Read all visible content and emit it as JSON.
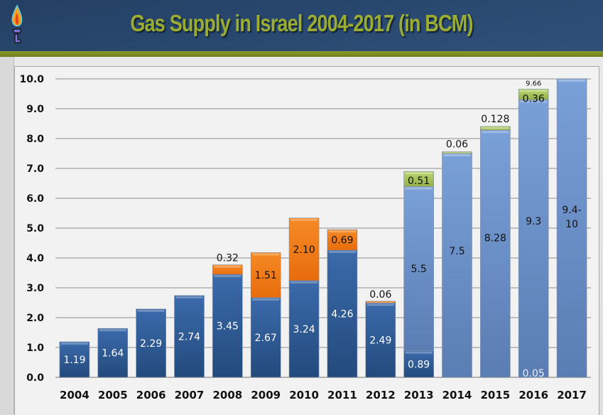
{
  "header": {
    "title": "Gas Supply in Israel 2004-2017 (in BCM)",
    "icon": "gas-flame-icon"
  },
  "chart_data": {
    "type": "bar",
    "stacked": true,
    "title": "Gas Supply in Israel 2004-2017 (in BCM)",
    "xlabel": "",
    "ylabel": "",
    "ylim": [
      0,
      10
    ],
    "yticks": [
      "0.0",
      "1.0",
      "2.0",
      "3.0",
      "4.0",
      "5.0",
      "6.0",
      "7.0",
      "8.0",
      "9.0",
      "10.0"
    ],
    "grid": true,
    "legend": "none",
    "categories": [
      "2004",
      "2005",
      "2006",
      "2007",
      "2008",
      "2009",
      "2010",
      "2011",
      "2012",
      "2013",
      "2014",
      "2015",
      "2016",
      "2017"
    ],
    "colors": {
      "dark_blue": "#2f5b95",
      "orange": "#f07a14",
      "light_blue": "#6f93cc",
      "green": "#a9c45a"
    },
    "series": [
      {
        "name": "dark_blue",
        "values": [
          1.19,
          1.64,
          2.29,
          2.74,
          3.45,
          2.67,
          3.24,
          4.26,
          2.49,
          0.89,
          0,
          0,
          0,
          0
        ],
        "labels": [
          "1.19",
          "1.64",
          "2.29",
          "2.74",
          "3.45",
          "2.67",
          "3.24",
          "4.26",
          "2.49",
          "0.89",
          "",
          "",
          "",
          ""
        ]
      },
      {
        "name": "orange",
        "values": [
          0,
          0,
          0,
          0,
          0.32,
          1.51,
          2.1,
          0.69,
          0.06,
          0,
          0,
          0,
          0,
          0
        ],
        "labels": [
          "",
          "",
          "",
          "",
          "0.32",
          "1.51",
          "2.10",
          "0.69",
          "0.06",
          "",
          "",
          "",
          "",
          ""
        ]
      },
      {
        "name": "light_blue",
        "values": [
          0,
          0,
          0,
          0,
          0,
          0,
          0,
          0,
          0,
          5.5,
          7.5,
          8.28,
          9.3,
          10
        ],
        "labels": [
          "",
          "",
          "",
          "",
          "",
          "",
          "",
          "",
          "",
          "5.5",
          "7.5",
          "8.28",
          "9.3",
          "9.4-\n10"
        ]
      },
      {
        "name": "green",
        "values": [
          0,
          0,
          0,
          0,
          0,
          0,
          0,
          0,
          0,
          0.51,
          0.06,
          0.128,
          0.36,
          0
        ],
        "labels": [
          "",
          "",
          "",
          "",
          "",
          "",
          "",
          "",
          "",
          "0.51",
          "0.06",
          "0.128",
          "0.36",
          ""
        ]
      }
    ],
    "annotations": [
      {
        "category": "2016",
        "text": "9.66",
        "position": "above-bar"
      },
      {
        "category": "2016",
        "text": "0.05",
        "position": "bar-bottom"
      }
    ]
  }
}
